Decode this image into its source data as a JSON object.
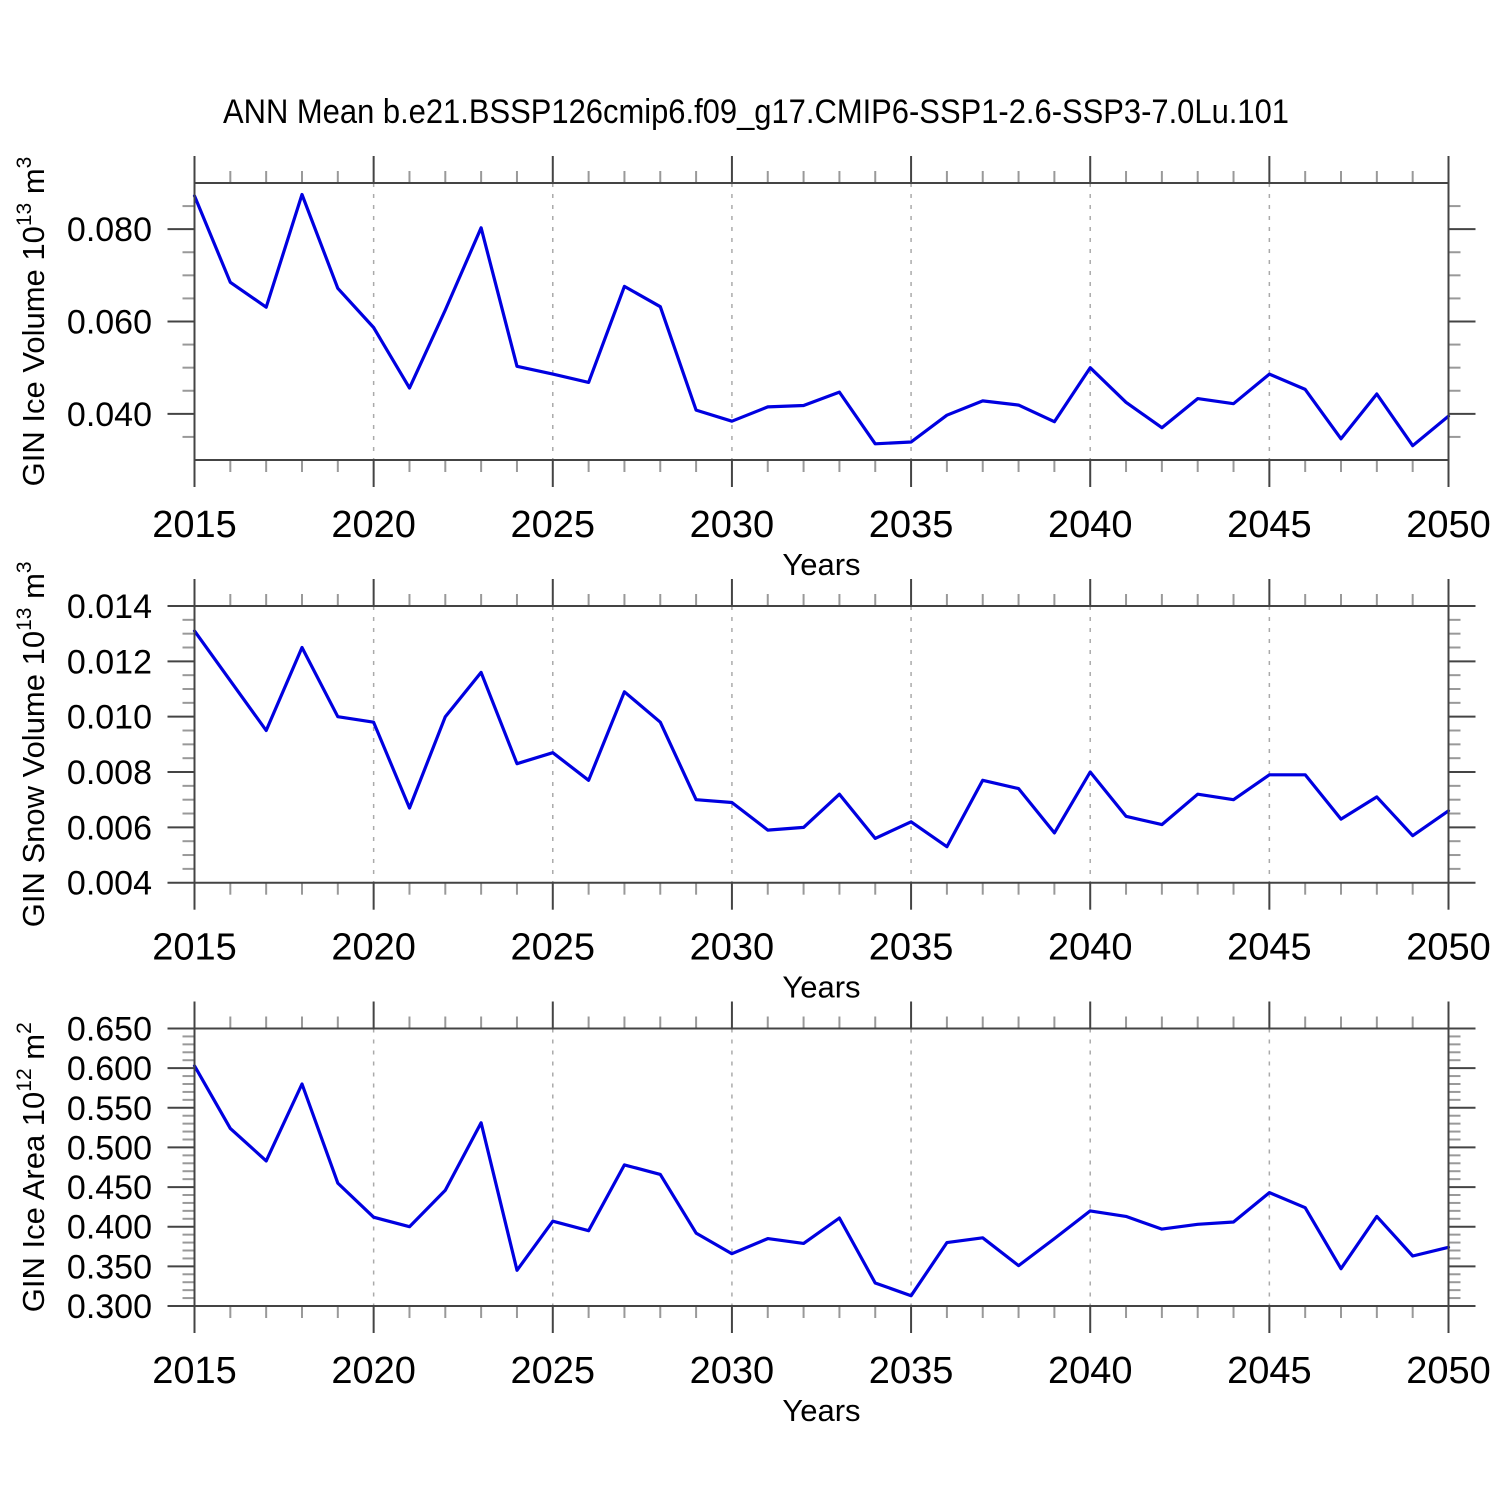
{
  "title": "ANN Mean b.e21.BSSP126cmip6.f09_g17.CMIP6-SSP1-2.6-SSP3-7.0Lu.101",
  "colors": {
    "line": "#0000e0",
    "axis": "#444444",
    "minor_tick": "#999999",
    "grid": "#aaaaaa",
    "text": "#000000",
    "background": "#ffffff"
  },
  "chart_data": [
    {
      "id": "gin-ice-volume",
      "type": "line",
      "xlabel": "Years",
      "ylabel": "GIN Ice Volume 10^13 m^3",
      "x_start": 2015,
      "x_end": 2050,
      "x_step": 1,
      "xlim": [
        2015,
        2050
      ],
      "x_major_tick_step": 5,
      "x_minor_tick_step": 1,
      "x_major_tick_labels": [
        "2015",
        "2020",
        "2025",
        "2030",
        "2035",
        "2040",
        "2045",
        "2050"
      ],
      "x_gridline_years": [
        2020,
        2025,
        2030,
        2035,
        2040,
        2045
      ],
      "ylim": [
        0.03,
        0.09
      ],
      "ytick_values": [
        0.04,
        0.06,
        0.08
      ],
      "ytick_labels": [
        "0.040",
        "0.060",
        "0.080"
      ],
      "y_minor_step": 0.005,
      "grid": "x-dashed",
      "legend": "none",
      "values": [
        0.0872,
        0.0685,
        0.0631,
        0.0875,
        0.0672,
        0.0587,
        0.0456,
        0.0625,
        0.0803,
        0.0503,
        0.0486,
        0.0468,
        0.0676,
        0.0632,
        0.0408,
        0.0384,
        0.0415,
        0.0418,
        0.0447,
        0.0335,
        0.0339,
        0.0397,
        0.0428,
        0.0419,
        0.0383,
        0.05,
        0.0425,
        0.037,
        0.0433,
        0.0422,
        0.0486,
        0.0453,
        0.0346,
        0.0443,
        0.0331,
        0.0395
      ]
    },
    {
      "id": "gin-snow-volume",
      "type": "line",
      "xlabel": "Years",
      "ylabel": "GIN Snow Volume 10^13 m^3",
      "x_start": 2015,
      "x_end": 2050,
      "x_step": 1,
      "xlim": [
        2015,
        2050
      ],
      "x_major_tick_step": 5,
      "x_minor_tick_step": 1,
      "x_major_tick_labels": [
        "2015",
        "2020",
        "2025",
        "2030",
        "2035",
        "2040",
        "2045",
        "2050"
      ],
      "x_gridline_years": [
        2020,
        2025,
        2030,
        2035,
        2040,
        2045
      ],
      "ylim": [
        0.004,
        0.014
      ],
      "ytick_values": [
        0.004,
        0.006,
        0.008,
        0.01,
        0.012,
        0.014
      ],
      "ytick_labels": [
        "0.004",
        "0.006",
        "0.008",
        "0.010",
        "0.012",
        "0.014"
      ],
      "y_minor_step": 0.0005,
      "grid": "x-dashed",
      "legend": "none",
      "values": [
        0.0131,
        0.0113,
        0.0095,
        0.0125,
        0.01,
        0.0098,
        0.0067,
        0.01,
        0.0116,
        0.0083,
        0.0087,
        0.0077,
        0.0109,
        0.0098,
        0.007,
        0.0069,
        0.0059,
        0.006,
        0.0072,
        0.0056,
        0.0062,
        0.0053,
        0.0077,
        0.0074,
        0.0058,
        0.008,
        0.0064,
        0.0061,
        0.0072,
        0.007,
        0.0079,
        0.0079,
        0.0063,
        0.0071,
        0.0057,
        0.0066
      ]
    },
    {
      "id": "gin-ice-area",
      "type": "line",
      "xlabel": "Years",
      "ylabel": "GIN Ice Area 10^12 m^2",
      "x_start": 2015,
      "x_end": 2050,
      "x_step": 1,
      "xlim": [
        2015,
        2050
      ],
      "x_major_tick_step": 5,
      "x_minor_tick_step": 1,
      "x_major_tick_labels": [
        "2015",
        "2020",
        "2025",
        "2030",
        "2035",
        "2040",
        "2045",
        "2050"
      ],
      "x_gridline_years": [
        2020,
        2025,
        2030,
        2035,
        2040,
        2045
      ],
      "ylim": [
        0.3,
        0.65
      ],
      "ytick_values": [
        0.3,
        0.35,
        0.4,
        0.45,
        0.5,
        0.55,
        0.6,
        0.65
      ],
      "ytick_labels": [
        "0.300",
        "0.350",
        "0.400",
        "0.450",
        "0.500",
        "0.550",
        "0.600",
        "0.650"
      ],
      "y_minor_step": 0.01,
      "grid": "x-dashed",
      "legend": "none",
      "values": [
        0.603,
        0.524,
        0.483,
        0.58,
        0.455,
        0.412,
        0.4,
        0.446,
        0.531,
        0.345,
        0.407,
        0.395,
        0.478,
        0.466,
        0.392,
        0.366,
        0.385,
        0.379,
        0.411,
        0.329,
        0.313,
        0.38,
        0.386,
        0.351,
        0.385,
        0.42,
        0.413,
        0.397,
        0.403,
        0.406,
        0.443,
        0.424,
        0.347,
        0.413,
        0.363,
        0.374
      ]
    }
  ]
}
